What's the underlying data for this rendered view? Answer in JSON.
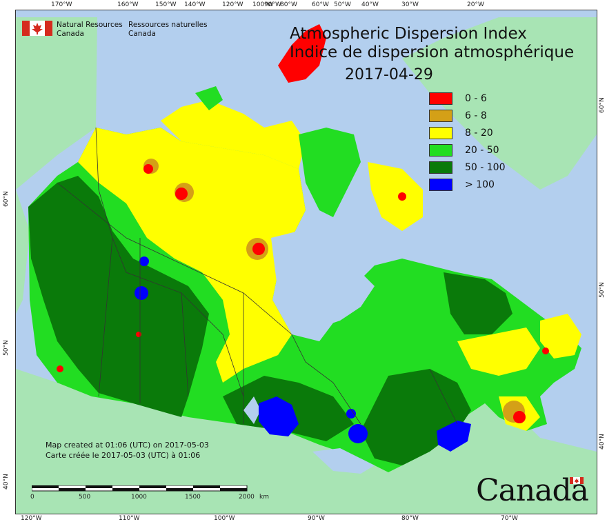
{
  "title": {
    "en": "Atmospheric Dispersion Index",
    "fr": "Indice de dispersion atmosphérique",
    "date": "2017-04-29"
  },
  "logo": {
    "en_line1": "Natural Resources",
    "en_line2": "Canada",
    "fr_line1": "Ressources naturelles",
    "fr_line2": "Canada"
  },
  "legend": [
    {
      "label": "0 - 6",
      "color": "#ff0000"
    },
    {
      "label": "6 - 8",
      "color": "#d4a017"
    },
    {
      "label": "8 - 20",
      "color": "#ffff00"
    },
    {
      "label": "20 - 50",
      "color": "#22dd22"
    },
    {
      "label": "50 - 100",
      "color": "#0a7a0a"
    },
    {
      "label": "> 100",
      "color": "#0000ff"
    }
  ],
  "credit": {
    "en": "Map created at 01:06 (UTC) on 2017-05-03",
    "fr": "Carte créée le 2017-05-03 (UTC) à 01:06"
  },
  "scale": {
    "labels": [
      "0",
      "500",
      "1000",
      "1500",
      "2000"
    ],
    "unit": "km"
  },
  "wordmark": "Canada",
  "top_ticks": [
    "170°W",
    "160°W",
    "150°W",
    "140°W",
    "120°W",
    "100°W",
    "90°W",
    "80°W",
    "60°W",
    "50°W",
    "40°W",
    "30°W",
    "20°W"
  ],
  "bottom_ticks": [
    "120°W",
    "110°W",
    "100°W",
    "90°W",
    "80°W",
    "70°W"
  ],
  "left_ticks": [
    "60°N",
    "50°N",
    "40°N"
  ],
  "right_ticks": [
    "60°N",
    "50°N",
    "40°N"
  ],
  "colors": {
    "ocean": "#b3cfee",
    "land_outside": "#a8e4b4",
    "water_inland": "#b3cfee"
  }
}
